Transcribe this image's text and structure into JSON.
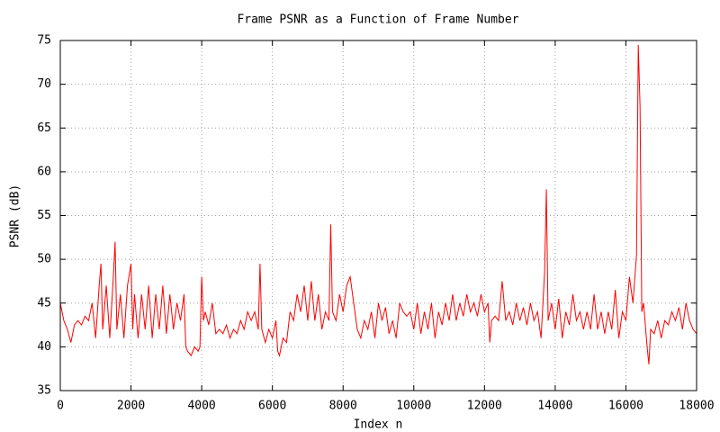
{
  "chart_data": {
    "type": "line",
    "title": "Frame PSNR as a Function of Frame Number",
    "xlabel": "Index n",
    "ylabel": "PSNR (dB)",
    "xlim": [
      0,
      18000
    ],
    "ylim": [
      35,
      75
    ],
    "xticks": [
      0,
      2000,
      4000,
      6000,
      8000,
      10000,
      12000,
      14000,
      16000,
      18000
    ],
    "yticks": [
      35,
      40,
      45,
      50,
      55,
      60,
      65,
      70,
      75
    ],
    "grid": true,
    "color": "#ff0000",
    "x": [
      0,
      100,
      200,
      300,
      400,
      500,
      600,
      700,
      800,
      900,
      1000,
      1100,
      1150,
      1200,
      1300,
      1400,
      1500,
      1550,
      1600,
      1700,
      1800,
      1900,
      2000,
      2050,
      2100,
      2200,
      2300,
      2400,
      2500,
      2600,
      2700,
      2800,
      2900,
      3000,
      3100,
      3200,
      3300,
      3400,
      3500,
      3550,
      3600,
      3700,
      3800,
      3900,
      3950,
      4000,
      4050,
      4100,
      4200,
      4300,
      4400,
      4500,
      4600,
      4700,
      4800,
      4900,
      5000,
      5100,
      5200,
      5300,
      5400,
      5500,
      5600,
      5650,
      5700,
      5800,
      5900,
      6000,
      6100,
      6150,
      6200,
      6300,
      6400,
      6500,
      6600,
      6700,
      6800,
      6900,
      7000,
      7100,
      7200,
      7300,
      7400,
      7500,
      7600,
      7650,
      7700,
      7800,
      7900,
      8000,
      8100,
      8200,
      8300,
      8400,
      8500,
      8600,
      8700,
      8800,
      8900,
      9000,
      9100,
      9200,
      9300,
      9400,
      9500,
      9600,
      9700,
      9800,
      9900,
      10000,
      10100,
      10200,
      10300,
      10400,
      10500,
      10600,
      10700,
      10800,
      10900,
      11000,
      11100,
      11200,
      11300,
      11400,
      11500,
      11600,
      11700,
      11800,
      11900,
      12000,
      12100,
      12150,
      12200,
      12300,
      12400,
      12500,
      12600,
      12700,
      12800,
      12900,
      13000,
      13100,
      13200,
      13300,
      13400,
      13500,
      13600,
      13700,
      13750,
      13800,
      13900,
      14000,
      14100,
      14200,
      14300,
      14400,
      14500,
      14600,
      14700,
      14800,
      14900,
      15000,
      15100,
      15200,
      15300,
      15400,
      15500,
      15600,
      15700,
      15800,
      15900,
      16000,
      16100,
      16200,
      16300,
      16350,
      16400,
      16450,
      16500,
      16600,
      16650,
      16700,
      16800,
      16900,
      17000,
      17100,
      17200,
      17300,
      17400,
      17500,
      17600,
      17700,
      17800,
      17900,
      18000
    ],
    "values": [
      45,
      43,
      42,
      40.5,
      42.5,
      43,
      42.5,
      43.5,
      43,
      45,
      41,
      47,
      49.5,
      42,
      47,
      41,
      48,
      52,
      42,
      46,
      41,
      47,
      49.5,
      42,
      46,
      41,
      46,
      42,
      47,
      41,
      46,
      42,
      47,
      41.5,
      46,
      42,
      45,
      43,
      46,
      40,
      39.5,
      39,
      40,
      39.5,
      40,
      48,
      43,
      44,
      42.5,
      45,
      41.5,
      42,
      41.5,
      42.5,
      41,
      42,
      41.5,
      43,
      42,
      44,
      43,
      44,
      42,
      49.5,
      42,
      40.5,
      42,
      41,
      43,
      39.5,
      39,
      41,
      40.5,
      44,
      43,
      46,
      44,
      47,
      43,
      47.5,
      43,
      46,
      42,
      44,
      43,
      54,
      44,
      43,
      46,
      44,
      47,
      48,
      45,
      42,
      41,
      43,
      42,
      44,
      41,
      45,
      43,
      44.5,
      41.5,
      43,
      41,
      45,
      44,
      43.5,
      44,
      42,
      45,
      41.5,
      44,
      42,
      45,
      41,
      44,
      42.5,
      45,
      43,
      46,
      43,
      45,
      43.5,
      46,
      44,
      45,
      43.5,
      46,
      44,
      45,
      40.5,
      43,
      43.5,
      43,
      47.5,
      43,
      44,
      42.5,
      45,
      43,
      44.5,
      42.5,
      45,
      43,
      44,
      41,
      48.5,
      58,
      43,
      45,
      42,
      45.5,
      41,
      44,
      42.5,
      46,
      43,
      44,
      42,
      44,
      42,
      46,
      42,
      44,
      41.5,
      44,
      42,
      46.5,
      41,
      44,
      43,
      48,
      45,
      50.5,
      74.5,
      67.5,
      44,
      45,
      40,
      38,
      42,
      41.5,
      43,
      41,
      43,
      42.5,
      44,
      43,
      44.5,
      42,
      45,
      43,
      42,
      41.5
    ]
  }
}
